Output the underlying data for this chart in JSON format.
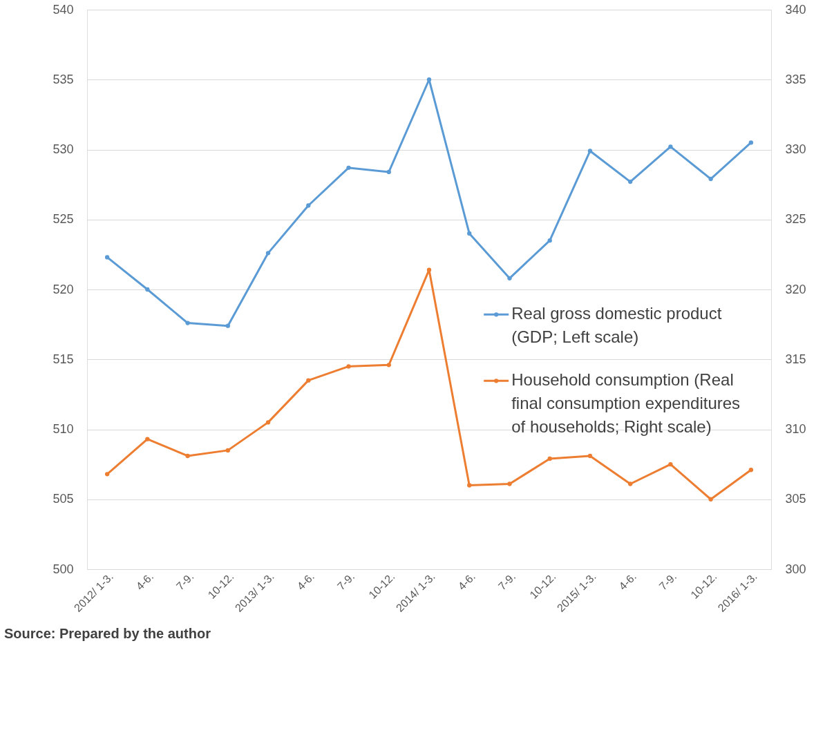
{
  "chart_data": {
    "type": "line",
    "categories": [
      "2012/ 1-3.",
      "4-6.",
      "7-9.",
      "10-12.",
      "2013/ 1-3.",
      "4-6.",
      "7-9.",
      "10-12.",
      "2014/ 1-3.",
      "4-6.",
      "7-9.",
      "10-12.",
      "2015/ 1-3.",
      "4-6.",
      "7-9.",
      "10-12.",
      "2016/ 1-3."
    ],
    "series": [
      {
        "name": "Real gross domestic product (GDP; Left scale)",
        "color": "#5b9bd5",
        "values": [
          522.3,
          520.0,
          517.6,
          517.4,
          522.6,
          526.0,
          528.7,
          528.4,
          535.0,
          524.0,
          520.8,
          523.5,
          529.9,
          527.7,
          530.2,
          527.9,
          530.5
        ]
      },
      {
        "name": "Household consumption (Real final consumption expenditures of households; Right scale)",
        "color": "#ed7d31",
        "axis": "y2",
        "values": [
          306.8,
          309.3,
          308.1,
          308.5,
          310.5,
          313.5,
          314.5,
          314.6,
          321.4,
          306.0,
          306.1,
          307.9,
          308.1,
          306.1,
          307.5,
          305.0,
          307.1
        ]
      }
    ],
    "ylim": [
      500,
      540
    ],
    "yticks": [
      500,
      505,
      510,
      515,
      520,
      525,
      530,
      535,
      540
    ],
    "y2lim": [
      300,
      340
    ],
    "y2ticks": [
      300,
      305,
      310,
      315,
      320,
      325,
      330,
      335,
      340
    ],
    "grid": "y",
    "legend": "right",
    "marker": "circle",
    "line_style": "solid",
    "annotations": [
      "Source: Prepared by the author"
    ]
  }
}
